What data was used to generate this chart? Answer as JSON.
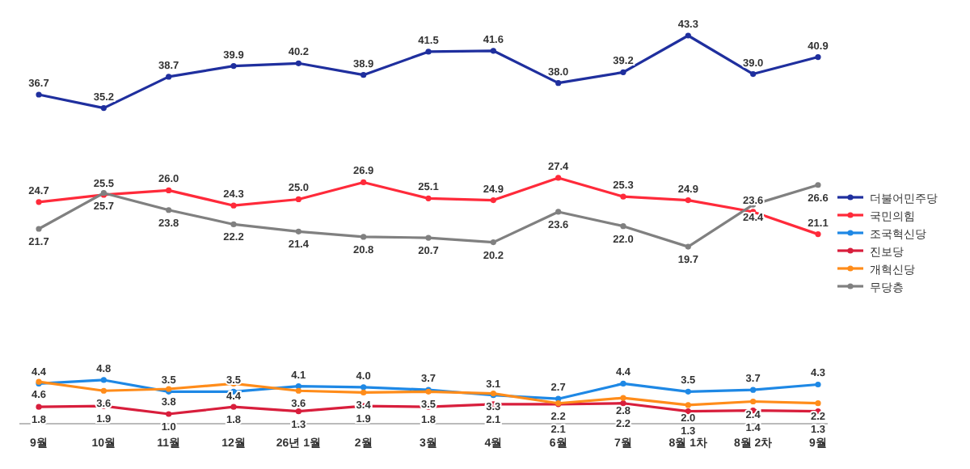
{
  "chart_data": {
    "type": "line",
    "categories": [
      "9월",
      "10월",
      "11월",
      "12월",
      "26년 1월",
      "2월",
      "3월",
      "4월",
      "6월",
      "7월",
      "8월 1차",
      "8월 2차",
      "9월"
    ],
    "series": [
      {
        "name": "더불어민주당",
        "color": "#1f2f9e",
        "values": [
          36.7,
          35.2,
          38.7,
          39.9,
          40.2,
          38.9,
          41.5,
          41.6,
          38.0,
          39.2,
          43.3,
          39.0,
          40.9
        ],
        "value_labels": [
          "36.7",
          "35.2",
          "38.7",
          "39.9",
          "40.2",
          "38.9",
          "41.5",
          "41.6",
          "38.0",
          "39.2",
          "43.3",
          "39.0",
          "40.9"
        ]
      },
      {
        "name": "국민의힘",
        "color": "#ff2a3a",
        "values": [
          24.7,
          25.5,
          26.0,
          24.3,
          25.0,
          26.9,
          25.1,
          24.9,
          27.4,
          25.3,
          24.9,
          23.6,
          21.1
        ],
        "value_labels": [
          "24.7",
          "25.5",
          "26.0",
          "24.3",
          "25.0",
          "26.9",
          "25.1",
          "24.9",
          "27.4",
          "25.3",
          "24.9",
          "23.6",
          "21.1"
        ]
      },
      {
        "name": "조국혁신당",
        "color": "#1e88e5",
        "values": [
          4.4,
          4.8,
          3.5,
          3.5,
          4.1,
          4.0,
          3.7,
          3.1,
          2.7,
          4.4,
          3.5,
          3.7,
          4.3
        ],
        "value_labels": [
          "4.4",
          "4.8",
          "3.5",
          "3.5",
          "4.1",
          "4.0",
          "3.7",
          "3.1",
          "2.7",
          "4.4",
          "3.5",
          "3.7",
          "4.3"
        ]
      },
      {
        "name": "진보당",
        "color": "#d81e3c",
        "values": [
          1.8,
          1.9,
          1.0,
          1.8,
          1.3,
          1.9,
          1.8,
          2.1,
          2.1,
          2.2,
          1.3,
          1.4,
          1.3
        ],
        "value_labels": [
          "1.8",
          "1.9",
          "1.0",
          "1.8",
          "1.3",
          "1.9",
          "1.8",
          "2.1",
          "2.1",
          "2.2",
          "1.3",
          "1.4",
          "1.3"
        ]
      },
      {
        "name": "개혁신당",
        "color": "#ff8c1a",
        "values": [
          4.6,
          3.6,
          3.8,
          4.4,
          3.6,
          3.4,
          3.5,
          3.3,
          2.2,
          2.8,
          2.0,
          2.4,
          2.2
        ],
        "value_labels": [
          "4.6",
          "3.6",
          "3.8",
          "4.4",
          "3.6",
          "3.4",
          "3.5",
          "3.3",
          "2.2",
          "2.8",
          "2.0",
          "2.4",
          "2.2"
        ]
      },
      {
        "name": "무당층",
        "color": "#808080",
        "values": [
          21.7,
          25.7,
          23.8,
          22.2,
          21.4,
          20.8,
          20.7,
          20.2,
          23.6,
          22.0,
          19.7,
          24.4,
          26.6
        ],
        "value_labels": [
          "21.7",
          "25.7",
          "23.8",
          "22.2",
          "21.4",
          "20.8",
          "20.7",
          "20.2",
          "23.6",
          "22.0",
          "19.7",
          "24.4",
          "26.6"
        ]
      }
    ],
    "tick_labels": "x",
    "legend": "right",
    "marker": "circle",
    "line_style": "solid"
  }
}
